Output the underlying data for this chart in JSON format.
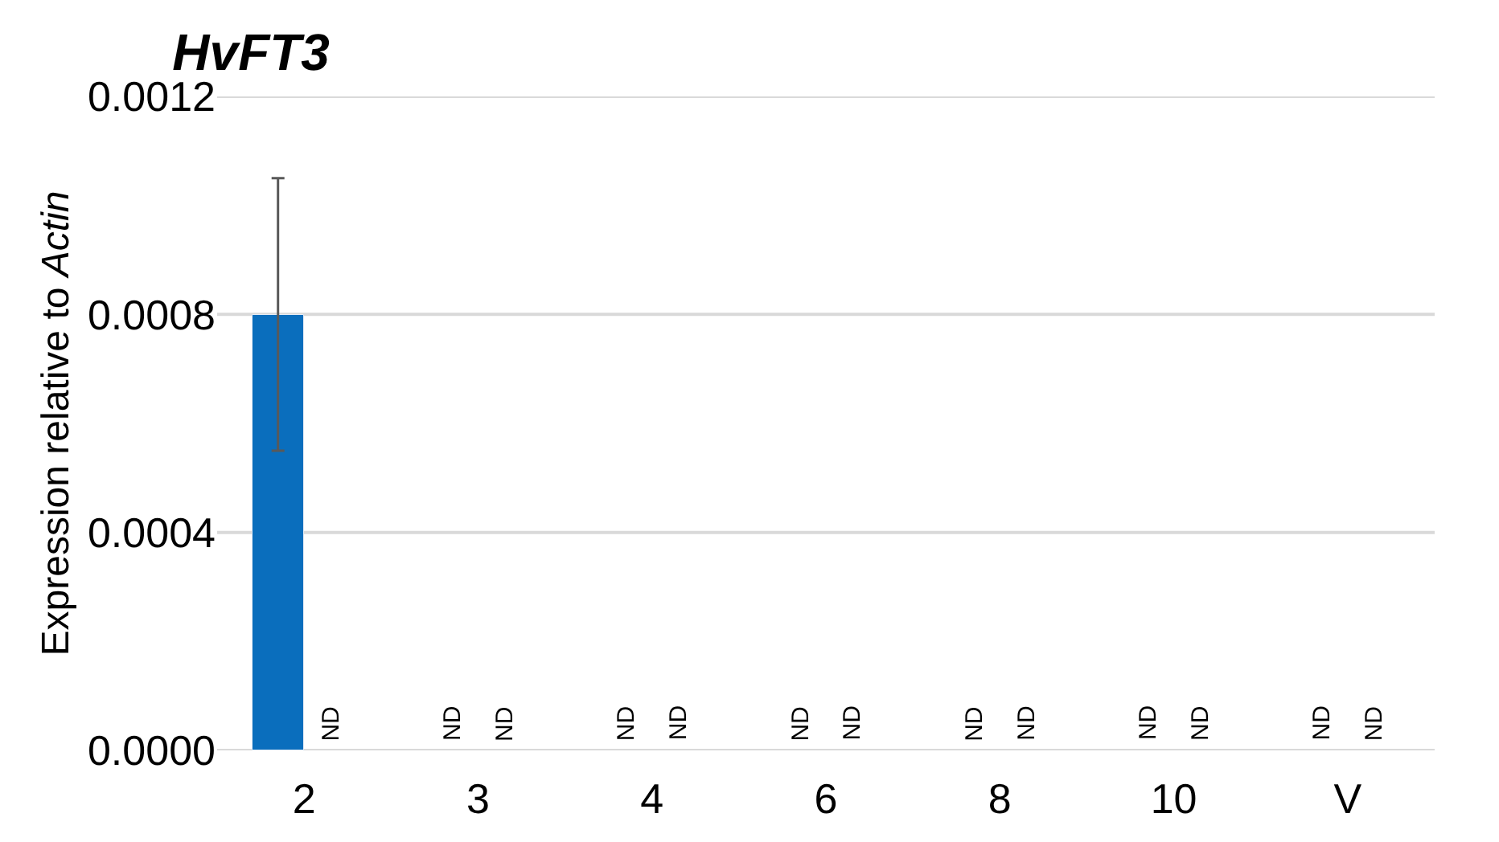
{
  "chart_data": {
    "type": "bar",
    "title": "HvFT3",
    "ylabel": "Expression relative to Actin",
    "categories": [
      "2",
      "3",
      "4",
      "6",
      "8",
      "10",
      "V"
    ],
    "series": [
      {
        "color": "#0a6ebd",
        "values": [
          0.0008,
          null,
          null,
          null,
          null,
          null,
          null
        ],
        "errors": [
          0.00025,
          null,
          null,
          null,
          null,
          null,
          null
        ],
        "value_labels": [
          null,
          "ND",
          "ND",
          "ND",
          "ND",
          "ND",
          "ND"
        ]
      },
      {
        "color": "#0a6ebd",
        "values": [
          null,
          null,
          null,
          null,
          null,
          null,
          null
        ],
        "value_labels": [
          "ND",
          "ND",
          "ND",
          "ND",
          "ND",
          "ND",
          "ND"
        ]
      }
    ],
    "ylim": [
      0,
      0.0012
    ],
    "yticks": [
      {
        "value": 0,
        "label": "0.0000"
      },
      {
        "value": 0.0004,
        "label": "0.0004"
      },
      {
        "value": 0.0008,
        "label": "0.0008"
      },
      {
        "value": 0.0012,
        "label": "0.0012"
      }
    ],
    "grid": "y"
  }
}
